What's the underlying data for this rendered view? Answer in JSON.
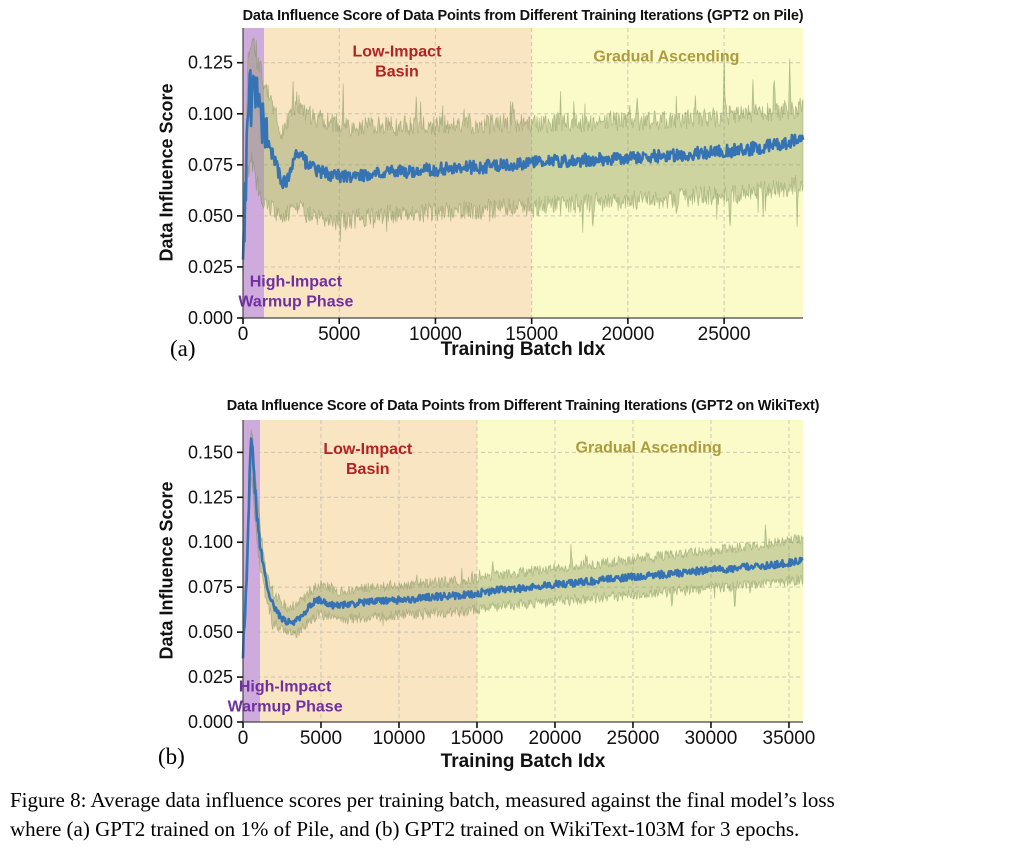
{
  "figure": {
    "caption_lines": [
      "Figure 8: Average data influence scores per training batch, measured against the final model’s loss",
      "where (a) GPT2 trained on 1% of Pile, and (b) GPT2 trained on WikiText-103M for 3 epochs."
    ]
  },
  "chart_data": [
    {
      "type": "line",
      "panel_label": "(a)",
      "title": "Data Influence Score of Data Points from Different Training Iterations (GPT2 on Pile)",
      "xlabel": "Training Batch Idx",
      "ylabel": "Data Influence Score",
      "xlim": [
        0,
        29100
      ],
      "ylim": [
        0,
        0.142
      ],
      "grid": true,
      "xticks": [
        0,
        5000,
        10000,
        15000,
        20000,
        25000
      ],
      "xtick_labels": [
        "0",
        "5000",
        "10000",
        "15000",
        "20000",
        "25000"
      ],
      "yticks": [
        0,
        0.025,
        0.05,
        0.075,
        0.1,
        0.125
      ],
      "ytick_labels": [
        "0.000",
        "0.025",
        "0.050",
        "0.075",
        "0.100",
        "0.125"
      ],
      "regions": [
        {
          "name": "high-impact-warmup-phase",
          "x0": 0,
          "x1": 1100,
          "color": "#cfabdd"
        },
        {
          "name": "low-impact-basin",
          "x0": 1100,
          "x1": 15000,
          "color": "#fae5c2"
        },
        {
          "name": "gradual-ascending",
          "x0": 15000,
          "x1": 29100,
          "color": "#fbfbca"
        }
      ],
      "annotations": [
        {
          "name": "low-impact-basin-label",
          "lines": [
            "Low-Impact",
            "Basin"
          ],
          "x": 8000,
          "y": 0.128,
          "color": "#b22222"
        },
        {
          "name": "gradual-ascending-label",
          "lines": [
            "Gradual Ascending"
          ],
          "x": 22000,
          "y": 0.1255,
          "color": "#ad9c3d"
        },
        {
          "name": "high-impact-warmup-label",
          "lines": [
            "High-Impact",
            "Warmup Phase"
          ],
          "x": 2750,
          "y": 0.0155,
          "color": "#7030a0"
        }
      ],
      "line": {
        "name": "mean-influence-score",
        "color": "#3573b4",
        "width": 2.6,
        "noise": 0.0032,
        "warmup_x": 1300,
        "warmup_mult": 4,
        "anchors": [
          [
            0,
            0.028
          ],
          [
            120,
            0.055
          ],
          [
            250,
            0.1
          ],
          [
            350,
            0.115
          ],
          [
            450,
            0.102
          ],
          [
            600,
            0.11
          ],
          [
            750,
            0.104
          ],
          [
            900,
            0.098
          ],
          [
            1100,
            0.09
          ],
          [
            1400,
            0.083
          ],
          [
            1700,
            0.076
          ],
          [
            2000,
            0.067
          ],
          [
            2200,
            0.066
          ],
          [
            2500,
            0.073
          ],
          [
            2800,
            0.081
          ],
          [
            3100,
            0.078
          ],
          [
            3500,
            0.074
          ],
          [
            4000,
            0.0715
          ],
          [
            4700,
            0.0695
          ],
          [
            5500,
            0.069
          ],
          [
            6500,
            0.07
          ],
          [
            7500,
            0.0712
          ],
          [
            8500,
            0.0718
          ],
          [
            9500,
            0.0725
          ],
          [
            10500,
            0.073
          ],
          [
            11500,
            0.0735
          ],
          [
            12500,
            0.074
          ],
          [
            13500,
            0.0748
          ],
          [
            14500,
            0.0755
          ],
          [
            15500,
            0.0762
          ],
          [
            16500,
            0.0768
          ],
          [
            17500,
            0.0772
          ],
          [
            18500,
            0.0778
          ],
          [
            19500,
            0.0782
          ],
          [
            20500,
            0.0788
          ],
          [
            21500,
            0.0792
          ],
          [
            22500,
            0.0798
          ],
          [
            23500,
            0.0805
          ],
          [
            24500,
            0.0812
          ],
          [
            25500,
            0.082
          ],
          [
            26500,
            0.083
          ],
          [
            27500,
            0.0845
          ],
          [
            28300,
            0.086
          ],
          [
            29100,
            0.0885
          ]
        ]
      },
      "band": {
        "name": "std-band",
        "color": "rgba(140,158,100,0.42)",
        "edge_color": "rgba(118,138,84,0.45)",
        "edge_noise": 0.005,
        "spike_prob": 0.025,
        "spike_amp": 0.012,
        "anchors": [
          [
            0,
            0.022,
            0.04
          ],
          [
            250,
            0.07,
            0.125
          ],
          [
            400,
            0.08,
            0.135
          ],
          [
            600,
            0.07,
            0.13
          ],
          [
            900,
            0.06,
            0.122
          ],
          [
            1200,
            0.055,
            0.112
          ],
          [
            1600,
            0.052,
            0.102
          ],
          [
            2000,
            0.048,
            0.091
          ],
          [
            2400,
            0.052,
            0.097
          ],
          [
            2800,
            0.056,
            0.106
          ],
          [
            3200,
            0.052,
            0.101
          ],
          [
            3800,
            0.049,
            0.098
          ],
          [
            4500,
            0.047,
            0.096
          ],
          [
            5500,
            0.048,
            0.094
          ],
          [
            6500,
            0.05,
            0.0935
          ],
          [
            8000,
            0.051,
            0.094
          ],
          [
            10000,
            0.052,
            0.0945
          ],
          [
            12000,
            0.053,
            0.095
          ],
          [
            14000,
            0.054,
            0.095
          ],
          [
            16000,
            0.0555,
            0.0955
          ],
          [
            18000,
            0.0565,
            0.096
          ],
          [
            20000,
            0.0575,
            0.0965
          ],
          [
            22000,
            0.0585,
            0.097
          ],
          [
            24000,
            0.0598,
            0.098
          ],
          [
            26000,
            0.061,
            0.0995
          ],
          [
            27500,
            0.063,
            0.101
          ],
          [
            29100,
            0.066,
            0.103
          ]
        ],
        "spikes": [
          [
            2600,
            0.012
          ],
          [
            5200,
            0.01
          ],
          [
            9000,
            0.012
          ],
          [
            14000,
            0.011
          ],
          [
            16500,
            0.014
          ],
          [
            18200,
            -0.013
          ],
          [
            20500,
            0.013
          ],
          [
            22500,
            -0.012
          ],
          [
            23500,
            0.014
          ],
          [
            25000,
            0.027
          ],
          [
            25300,
            -0.02
          ],
          [
            26500,
            0.016
          ],
          [
            27600,
            0.02
          ],
          [
            28400,
            0.022
          ],
          [
            28800,
            -0.016
          ]
        ]
      },
      "seed": 7
    },
    {
      "type": "line",
      "panel_label": "(b)",
      "title": "Data Influence Score of Data Points from Different Training Iterations (GPT2 on WikiText)",
      "xlabel": "Training Batch Idx",
      "ylabel": "Data Influence Score",
      "xlim": [
        0,
        35900
      ],
      "ylim": [
        0,
        0.168
      ],
      "grid": true,
      "xticks": [
        0,
        5000,
        10000,
        15000,
        20000,
        25000,
        30000,
        35000
      ],
      "xtick_labels": [
        "0",
        "5000",
        "10000",
        "15000",
        "20000",
        "25000",
        "30000",
        "35000"
      ],
      "yticks": [
        0,
        0.025,
        0.05,
        0.075,
        0.1,
        0.125,
        0.15
      ],
      "ytick_labels": [
        "0.000",
        "0.025",
        "0.050",
        "0.075",
        "0.100",
        "0.125",
        "0.150"
      ],
      "regions": [
        {
          "name": "high-impact-warmup-phase",
          "x0": 0,
          "x1": 1100,
          "color": "#cfabdd"
        },
        {
          "name": "low-impact-basin",
          "x0": 1100,
          "x1": 15000,
          "color": "#fae5c2"
        },
        {
          "name": "gradual-ascending",
          "x0": 15000,
          "x1": 35900,
          "color": "#fbfbca"
        }
      ],
      "annotations": [
        {
          "name": "low-impact-basin-label",
          "lines": [
            "Low-Impact",
            "Basin"
          ],
          "x": 8000,
          "y": 0.149,
          "color": "#b22222"
        },
        {
          "name": "gradual-ascending-label",
          "lines": [
            "Gradual Ascending"
          ],
          "x": 26000,
          "y": 0.15,
          "color": "#ad9c3d"
        },
        {
          "name": "high-impact-warmup-label",
          "lines": [
            "High-Impact",
            "Warmup Phase"
          ],
          "x": 2700,
          "y": 0.017,
          "color": "#7030a0"
        }
      ],
      "line": {
        "name": "mean-influence-score",
        "color": "#3573b4",
        "width": 2.6,
        "noise": 0.002,
        "warmup_x": 900,
        "warmup_mult": 2.5,
        "anchors": [
          [
            0,
            0.04
          ],
          [
            150,
            0.06
          ],
          [
            300,
            0.1
          ],
          [
            420,
            0.135
          ],
          [
            520,
            0.155
          ],
          [
            620,
            0.148
          ],
          [
            750,
            0.132
          ],
          [
            900,
            0.115
          ],
          [
            1100,
            0.098
          ],
          [
            1400,
            0.082
          ],
          [
            1700,
            0.071
          ],
          [
            2000,
            0.0635
          ],
          [
            2400,
            0.0585
          ],
          [
            2800,
            0.056
          ],
          [
            3200,
            0.0555
          ],
          [
            3600,
            0.058
          ],
          [
            4000,
            0.0615
          ],
          [
            4400,
            0.0655
          ],
          [
            4800,
            0.068
          ],
          [
            5200,
            0.0675
          ],
          [
            5600,
            0.0655
          ],
          [
            6000,
            0.0645
          ],
          [
            6600,
            0.065
          ],
          [
            7400,
            0.066
          ],
          [
            8200,
            0.067
          ],
          [
            9000,
            0.0672
          ],
          [
            10000,
            0.068
          ],
          [
            11000,
            0.0685
          ],
          [
            12000,
            0.0695
          ],
          [
            13000,
            0.07
          ],
          [
            14000,
            0.0705
          ],
          [
            15000,
            0.0715
          ],
          [
            16000,
            0.073
          ],
          [
            17000,
            0.0738
          ],
          [
            18000,
            0.0745
          ],
          [
            19000,
            0.0755
          ],
          [
            20000,
            0.0765
          ],
          [
            21000,
            0.0772
          ],
          [
            22000,
            0.078
          ],
          [
            23000,
            0.079
          ],
          [
            24000,
            0.08
          ],
          [
            25000,
            0.0808
          ],
          [
            26000,
            0.0815
          ],
          [
            27000,
            0.0822
          ],
          [
            28000,
            0.083
          ],
          [
            29000,
            0.0838
          ],
          [
            30000,
            0.0845
          ],
          [
            31000,
            0.0852
          ],
          [
            32000,
            0.086
          ],
          [
            33000,
            0.0868
          ],
          [
            34000,
            0.0875
          ],
          [
            35000,
            0.0885
          ],
          [
            35900,
            0.0905
          ]
        ]
      },
      "band": {
        "name": "std-band",
        "color": "rgba(140,158,100,0.42)",
        "edge_color": "rgba(118,138,84,0.45)",
        "edge_noise": 0.003,
        "spike_prob": 0.012,
        "spike_amp": 0.007,
        "anchors": [
          [
            0,
            0.035,
            0.048
          ],
          [
            300,
            0.085,
            0.115
          ],
          [
            450,
            0.125,
            0.155
          ],
          [
            550,
            0.14,
            0.164
          ],
          [
            700,
            0.12,
            0.148
          ],
          [
            900,
            0.1,
            0.128
          ],
          [
            1100,
            0.088,
            0.108
          ],
          [
            1500,
            0.066,
            0.082
          ],
          [
            2000,
            0.0555,
            0.071
          ],
          [
            2500,
            0.051,
            0.066
          ],
          [
            3000,
            0.0485,
            0.0635
          ],
          [
            3600,
            0.0505,
            0.066
          ],
          [
            4200,
            0.055,
            0.0715
          ],
          [
            4800,
            0.0595,
            0.0765
          ],
          [
            5400,
            0.059,
            0.076
          ],
          [
            6000,
            0.0565,
            0.0725
          ],
          [
            7000,
            0.0575,
            0.0735
          ],
          [
            8000,
            0.0585,
            0.0745
          ],
          [
            9000,
            0.059,
            0.0755
          ],
          [
            10000,
            0.0595,
            0.076
          ],
          [
            12000,
            0.0605,
            0.0775
          ],
          [
            14000,
            0.0615,
            0.0785
          ],
          [
            16000,
            0.064,
            0.0815
          ],
          [
            18000,
            0.0655,
            0.0835
          ],
          [
            20000,
            0.067,
            0.0855
          ],
          [
            22000,
            0.0685,
            0.0875
          ],
          [
            24000,
            0.07,
            0.0895
          ],
          [
            26000,
            0.0715,
            0.0915
          ],
          [
            28000,
            0.073,
            0.0935
          ],
          [
            30000,
            0.0745,
            0.0955
          ],
          [
            32000,
            0.076,
            0.0975
          ],
          [
            34000,
            0.0775,
            0.0995
          ],
          [
            35900,
            0.079,
            0.102
          ]
        ],
        "spikes": [
          [
            1900,
            -0.008
          ],
          [
            16000,
            0.008
          ],
          [
            21000,
            0.007
          ],
          [
            27500,
            -0.009
          ],
          [
            31500,
            -0.012
          ],
          [
            33500,
            0.008
          ]
        ]
      },
      "seed": 13
    }
  ]
}
